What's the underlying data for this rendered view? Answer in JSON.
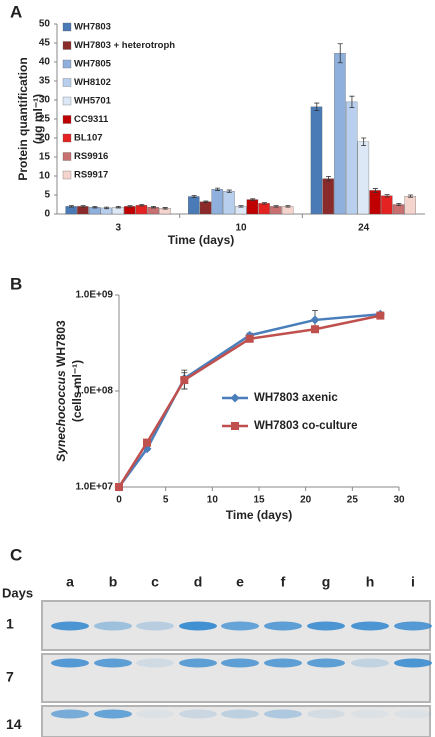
{
  "chart_data": [
    {
      "type": "bar",
      "panel": "A",
      "ylabel": [
        "Protein quantification",
        "(ug ml⁻¹)"
      ],
      "xlabel": "Time (days)",
      "categories": [
        "3",
        "10",
        "24"
      ],
      "ylim": [
        0,
        50
      ],
      "yticks": [
        0,
        5,
        10,
        15,
        20,
        25,
        30,
        35,
        40,
        45,
        50
      ],
      "legend": "upper-left",
      "series": [
        {
          "name": "WH7803",
          "color": "#4a7bb7",
          "values": [
            2.0,
            4.6,
            28.2
          ],
          "errors": [
            0.2,
            0.3,
            1.0
          ]
        },
        {
          "name": "WH7803 + heterotroph",
          "color": "#8b2a2a",
          "values": [
            2.0,
            3.2,
            9.3
          ],
          "errors": [
            0.2,
            0.2,
            0.6
          ]
        },
        {
          "name": "WH7805",
          "color": "#8fb0dd",
          "values": [
            1.8,
            6.5,
            42.3
          ],
          "errors": [
            0.2,
            0.3,
            2.5
          ]
        },
        {
          "name": "WH8102",
          "color": "#b8d0ee",
          "values": [
            1.6,
            6.0,
            29.5
          ],
          "errors": [
            0.2,
            0.3,
            1.5
          ]
        },
        {
          "name": "WH5701",
          "color": "#dce8f6",
          "values": [
            1.8,
            2.0,
            19.0
          ],
          "errors": [
            0.2,
            0.2,
            1.0
          ]
        },
        {
          "name": "CC9311",
          "color": "#c00000",
          "values": [
            2.0,
            3.8,
            6.2
          ],
          "errors": [
            0.2,
            0.2,
            0.5
          ]
        },
        {
          "name": "BL107",
          "color": "#e52222",
          "values": [
            2.3,
            2.8,
            4.8
          ],
          "errors": [
            0.2,
            0.2,
            0.3
          ]
        },
        {
          "name": "RS9916",
          "color": "#c87070",
          "values": [
            1.8,
            2.0,
            2.5
          ],
          "errors": [
            0.2,
            0.2,
            0.3
          ]
        },
        {
          "name": "RS9917",
          "color": "#f4d4cc",
          "values": [
            1.5,
            2.0,
            4.7
          ],
          "errors": [
            0.2,
            0.2,
            0.3
          ]
        }
      ]
    },
    {
      "type": "line",
      "panel": "B",
      "ylabel_italic": "Synechococcus",
      "ylabel": [
        "WH7803",
        "(cells ml⁻¹)"
      ],
      "xlabel": "Time (days)",
      "x": [
        0,
        3,
        7,
        14,
        21,
        28
      ],
      "xlim": [
        0,
        30
      ],
      "xticks": [
        0,
        5,
        10,
        15,
        20,
        25,
        30
      ],
      "log_y": true,
      "ylim": [
        10000000,
        1000000000
      ],
      "yticks": [
        {
          "value": 10000000,
          "label": "1.0E+07"
        },
        {
          "value": 100000000,
          "label": "1.0E+08"
        },
        {
          "value": 1000000000,
          "label": "1.0E+09"
        }
      ],
      "legend": "center-right",
      "series": [
        {
          "name": "WH7803 axenic",
          "color": "#4a7ebb",
          "marker": "diamond",
          "values": [
            10000000,
            25000000,
            135000000,
            380000000,
            550000000,
            630000000
          ],
          "errors": [
            0,
            1000000,
            30000000,
            20000000,
            140000000,
            30000000
          ]
        },
        {
          "name": "WH7803 co-culture",
          "color": "#c0504d",
          "marker": "square",
          "values": [
            10000000,
            29000000,
            130000000,
            350000000,
            440000000,
            610000000
          ],
          "errors": [
            0,
            1000000,
            25000000,
            15000000,
            30000000,
            40000000
          ]
        }
      ]
    }
  ],
  "gel": {
    "panel": "C",
    "row_title": "Days",
    "lanes": [
      "a",
      "b",
      "c",
      "d",
      "e",
      "f",
      "g",
      "h",
      "i"
    ],
    "rows": [
      "1",
      "7",
      "14"
    ]
  }
}
